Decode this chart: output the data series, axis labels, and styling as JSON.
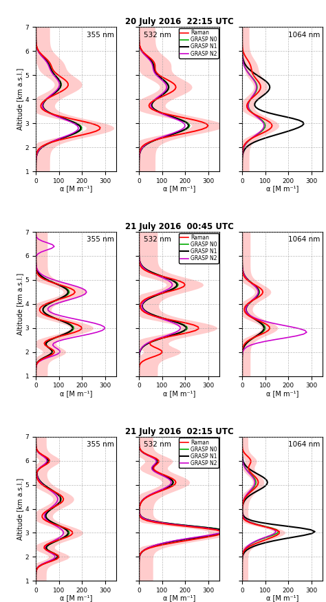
{
  "row_titles": [
    "20 July 2016  22:15 UTC",
    "21 July 2016  00:45 UTC",
    "21 July 2016  02:15 UTC"
  ],
  "col_labels": [
    "355 nm",
    "532 nm",
    "1064 nm"
  ],
  "legend_labels": [
    "Raman",
    "GRASP N0",
    "GRASP N1",
    "GRASP N2"
  ],
  "line_colors": [
    "#ff0000",
    "#00aa00",
    "#000000",
    "#cc00cc"
  ],
  "shade_color": "#ffbbbb",
  "xlabel": "α [M m⁻¹]",
  "ylabel": "Altitude [km a.s.l.]",
  "xlim": [
    0,
    350
  ],
  "ylim": [
    1,
    7
  ],
  "xticks": [
    0,
    100,
    200,
    300
  ],
  "yticks": [
    1,
    2,
    3,
    4,
    5,
    6,
    7
  ],
  "figsize": [
    4.74,
    8.75
  ],
  "dpi": 100
}
